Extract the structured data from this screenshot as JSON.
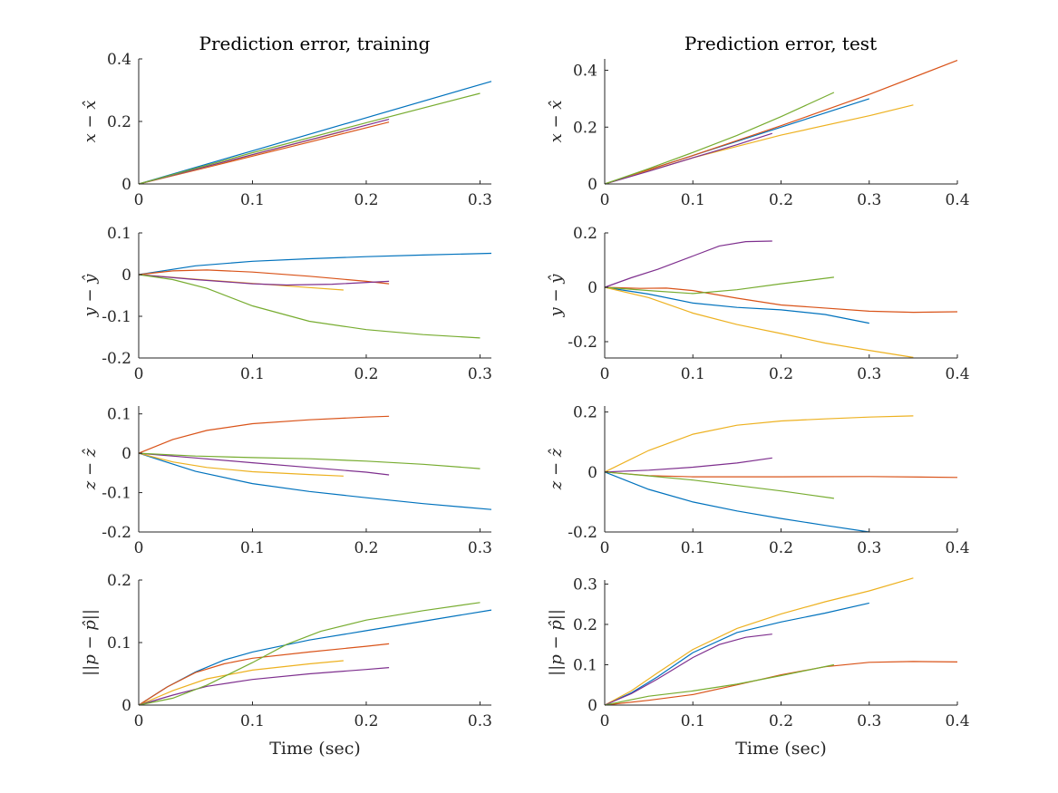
{
  "figure": {
    "columns": [
      {
        "title": "Prediction error, training"
      },
      {
        "title": "Prediction error, test"
      }
    ],
    "xlabel": "Time (sec)"
  },
  "colors": [
    "#0072bd",
    "#d95319",
    "#edb120",
    "#7e2f8e",
    "#77ac30"
  ],
  "chart_data": [
    {
      "type": "line",
      "panel": "training-x",
      "title": "Prediction error, training",
      "ylabel": "x − x̂",
      "xlabel": "",
      "xlim": [
        0,
        0.31
      ],
      "ylim": [
        0,
        0.4
      ],
      "xticks": [
        0,
        0.1,
        0.2,
        0.3
      ],
      "yticks": [
        0,
        0.2,
        0.4
      ],
      "series": [
        {
          "x": [
            0,
            0.1,
            0.2,
            0.31
          ],
          "y": [
            0,
            0.106,
            0.212,
            0.328
          ]
        },
        {
          "x": [
            0,
            0.05,
            0.1,
            0.15,
            0.22
          ],
          "y": [
            0,
            0.044,
            0.089,
            0.134,
            0.198
          ]
        },
        {
          "x": [
            0,
            0.05,
            0.1,
            0.15,
            0.18
          ],
          "y": [
            0,
            0.046,
            0.093,
            0.14,
            0.168
          ]
        },
        {
          "x": [
            0,
            0.05,
            0.1,
            0.15,
            0.22
          ],
          "y": [
            0,
            0.047,
            0.094,
            0.141,
            0.207
          ]
        },
        {
          "x": [
            0,
            0.1,
            0.2,
            0.3
          ],
          "y": [
            0,
            0.1,
            0.196,
            0.29
          ]
        }
      ]
    },
    {
      "type": "line",
      "panel": "test-x",
      "title": "Prediction error, test",
      "ylabel": "x − x̂",
      "xlabel": "",
      "xlim": [
        0,
        0.4
      ],
      "ylim": [
        0,
        0.44
      ],
      "xticks": [
        0,
        0.1,
        0.2,
        0.3,
        0.4
      ],
      "yticks": [
        0,
        0.2,
        0.4
      ],
      "series": [
        {
          "x": [
            0,
            0.1,
            0.2,
            0.3
          ],
          "y": [
            0,
            0.1,
            0.2,
            0.3
          ]
        },
        {
          "x": [
            0,
            0.1,
            0.2,
            0.3,
            0.4
          ],
          "y": [
            0,
            0.1,
            0.205,
            0.315,
            0.435
          ]
        },
        {
          "x": [
            0,
            0.1,
            0.2,
            0.3,
            0.35
          ],
          "y": [
            0,
            0.092,
            0.172,
            0.24,
            0.278
          ]
        },
        {
          "x": [
            0,
            0.05,
            0.1,
            0.15,
            0.19
          ],
          "y": [
            0,
            0.045,
            0.092,
            0.138,
            0.178
          ]
        },
        {
          "x": [
            0,
            0.05,
            0.1,
            0.15,
            0.2,
            0.26
          ],
          "y": [
            0,
            0.054,
            0.111,
            0.171,
            0.237,
            0.322
          ]
        }
      ]
    },
    {
      "type": "line",
      "panel": "training-y",
      "ylabel": "y − ŷ",
      "xlabel": "",
      "xlim": [
        0,
        0.31
      ],
      "ylim": [
        -0.2,
        0.1
      ],
      "xticks": [
        0,
        0.1,
        0.2,
        0.3
      ],
      "yticks": [
        -0.2,
        -0.1,
        0,
        0.1
      ],
      "series": [
        {
          "x": [
            0,
            0.05,
            0.1,
            0.15,
            0.2,
            0.25,
            0.31
          ],
          "y": [
            0,
            0.021,
            0.032,
            0.038,
            0.043,
            0.047,
            0.051
          ]
        },
        {
          "x": [
            0,
            0.03,
            0.06,
            0.1,
            0.15,
            0.2,
            0.22
          ],
          "y": [
            0,
            0.009,
            0.011,
            0.006,
            -0.004,
            -0.016,
            -0.022
          ]
        },
        {
          "x": [
            0,
            0.05,
            0.1,
            0.15,
            0.18
          ],
          "y": [
            0,
            -0.011,
            -0.021,
            -0.031,
            -0.037
          ]
        },
        {
          "x": [
            0,
            0.05,
            0.1,
            0.13,
            0.17,
            0.22
          ],
          "y": [
            0,
            -0.012,
            -0.022,
            -0.025,
            -0.023,
            -0.016
          ]
        },
        {
          "x": [
            0,
            0.03,
            0.06,
            0.1,
            0.15,
            0.2,
            0.25,
            0.3
          ],
          "y": [
            0,
            -0.012,
            -0.033,
            -0.075,
            -0.112,
            -0.132,
            -0.144,
            -0.152
          ]
        }
      ]
    },
    {
      "type": "line",
      "panel": "test-y",
      "ylabel": "y − ŷ",
      "xlabel": "",
      "xlim": [
        0,
        0.4
      ],
      "ylim": [
        -0.26,
        0.2
      ],
      "xticks": [
        0,
        0.1,
        0.2,
        0.3,
        0.4
      ],
      "yticks": [
        -0.2,
        0,
        0.2
      ],
      "series": [
        {
          "x": [
            0,
            0.05,
            0.1,
            0.15,
            0.2,
            0.25,
            0.3
          ],
          "y": [
            0,
            -0.025,
            -0.058,
            -0.074,
            -0.083,
            -0.1,
            -0.132
          ]
        },
        {
          "x": [
            0,
            0.04,
            0.07,
            0.1,
            0.15,
            0.2,
            0.3,
            0.35,
            0.4
          ],
          "y": [
            0,
            -0.004,
            -0.003,
            -0.012,
            -0.04,
            -0.065,
            -0.088,
            -0.092,
            -0.09
          ]
        },
        {
          "x": [
            0,
            0.05,
            0.1,
            0.15,
            0.2,
            0.25,
            0.3,
            0.35
          ],
          "y": [
            0,
            -0.038,
            -0.095,
            -0.137,
            -0.17,
            -0.205,
            -0.232,
            -0.258
          ]
        },
        {
          "x": [
            0,
            0.03,
            0.06,
            0.1,
            0.13,
            0.16,
            0.19
          ],
          "y": [
            0,
            0.035,
            0.066,
            0.115,
            0.152,
            0.168,
            0.17
          ]
        },
        {
          "x": [
            0,
            0.05,
            0.1,
            0.15,
            0.2,
            0.26
          ],
          "y": [
            0,
            -0.012,
            -0.023,
            -0.009,
            0.013,
            0.037
          ]
        }
      ]
    },
    {
      "type": "line",
      "panel": "training-z",
      "ylabel": "z − ẑ",
      "xlabel": "",
      "xlim": [
        0,
        0.31
      ],
      "ylim": [
        -0.2,
        0.12
      ],
      "xticks": [
        0,
        0.1,
        0.2,
        0.3
      ],
      "yticks": [
        -0.2,
        -0.1,
        0,
        0.1
      ],
      "series": [
        {
          "x": [
            0,
            0.05,
            0.1,
            0.15,
            0.2,
            0.25,
            0.31
          ],
          "y": [
            0,
            -0.046,
            -0.077,
            -0.097,
            -0.113,
            -0.128,
            -0.143
          ]
        },
        {
          "x": [
            0,
            0.03,
            0.06,
            0.1,
            0.15,
            0.2,
            0.22
          ],
          "y": [
            0,
            0.035,
            0.058,
            0.075,
            0.085,
            0.092,
            0.094
          ]
        },
        {
          "x": [
            0,
            0.03,
            0.06,
            0.1,
            0.15,
            0.18
          ],
          "y": [
            0,
            -0.022,
            -0.036,
            -0.047,
            -0.054,
            -0.058
          ]
        },
        {
          "x": [
            0,
            0.05,
            0.1,
            0.15,
            0.2,
            0.22
          ],
          "y": [
            0,
            -0.012,
            -0.024,
            -0.036,
            -0.048,
            -0.055
          ]
        },
        {
          "x": [
            0,
            0.05,
            0.1,
            0.15,
            0.2,
            0.25,
            0.3
          ],
          "y": [
            0,
            -0.007,
            -0.011,
            -0.014,
            -0.02,
            -0.028,
            -0.039
          ]
        }
      ]
    },
    {
      "type": "line",
      "panel": "test-z",
      "ylabel": "z − ẑ",
      "xlabel": "",
      "xlim": [
        0,
        0.4
      ],
      "ylim": [
        -0.2,
        0.22
      ],
      "xticks": [
        0,
        0.1,
        0.2,
        0.3,
        0.4
      ],
      "yticks": [
        -0.2,
        0,
        0.2
      ],
      "series": [
        {
          "x": [
            0,
            0.05,
            0.1,
            0.15,
            0.2,
            0.25,
            0.3
          ],
          "y": [
            0,
            -0.058,
            -0.1,
            -0.13,
            -0.155,
            -0.178,
            -0.2
          ]
        },
        {
          "x": [
            0,
            0.05,
            0.1,
            0.2,
            0.3,
            0.4
          ],
          "y": [
            0,
            -0.012,
            -0.016,
            -0.016,
            -0.015,
            -0.018
          ]
        },
        {
          "x": [
            0,
            0.05,
            0.1,
            0.15,
            0.2,
            0.25,
            0.3,
            0.35
          ],
          "y": [
            0,
            0.072,
            0.126,
            0.156,
            0.17,
            0.177,
            0.183,
            0.187
          ]
        },
        {
          "x": [
            0,
            0.05,
            0.1,
            0.15,
            0.19
          ],
          "y": [
            0,
            0.006,
            0.016,
            0.03,
            0.047
          ]
        },
        {
          "x": [
            0,
            0.05,
            0.1,
            0.15,
            0.2,
            0.26
          ],
          "y": [
            0,
            -0.013,
            -0.027,
            -0.045,
            -0.063,
            -0.088
          ]
        }
      ]
    },
    {
      "type": "line",
      "panel": "training-norm",
      "ylabel": "||p − p̂||",
      "xlabel": "Time (sec)",
      "xlim": [
        0,
        0.31
      ],
      "ylim": [
        0,
        0.2
      ],
      "xticks": [
        0,
        0.1,
        0.2,
        0.3
      ],
      "yticks": [
        0,
        0.1,
        0.2
      ],
      "series": [
        {
          "x": [
            0,
            0.025,
            0.05,
            0.075,
            0.1,
            0.15,
            0.2,
            0.25,
            0.31
          ],
          "y": [
            0,
            0.029,
            0.053,
            0.072,
            0.085,
            0.104,
            0.119,
            0.134,
            0.152
          ]
        },
        {
          "x": [
            0,
            0.025,
            0.05,
            0.075,
            0.1,
            0.15,
            0.2,
            0.22
          ],
          "y": [
            0,
            0.029,
            0.052,
            0.066,
            0.075,
            0.085,
            0.094,
            0.098
          ]
        },
        {
          "x": [
            0,
            0.03,
            0.06,
            0.1,
            0.15,
            0.18
          ],
          "y": [
            0,
            0.023,
            0.042,
            0.056,
            0.066,
            0.071
          ]
        },
        {
          "x": [
            0,
            0.03,
            0.06,
            0.1,
            0.15,
            0.2,
            0.22
          ],
          "y": [
            0,
            0.016,
            0.03,
            0.041,
            0.05,
            0.057,
            0.06
          ]
        },
        {
          "x": [
            0,
            0.03,
            0.06,
            0.1,
            0.13,
            0.16,
            0.2,
            0.25,
            0.3
          ],
          "y": [
            0,
            0.011,
            0.032,
            0.068,
            0.097,
            0.118,
            0.136,
            0.151,
            0.164
          ]
        }
      ]
    },
    {
      "type": "line",
      "panel": "test-norm",
      "ylabel": "||p − p̂||",
      "xlabel": "Time (sec)",
      "xlim": [
        0,
        0.4
      ],
      "ylim": [
        0,
        0.31
      ],
      "xticks": [
        0,
        0.1,
        0.2,
        0.3,
        0.4
      ],
      "yticks": [
        0,
        0.1,
        0.2,
        0.3
      ],
      "series": [
        {
          "x": [
            0,
            0.03,
            0.06,
            0.1,
            0.15,
            0.2,
            0.25,
            0.3
          ],
          "y": [
            0,
            0.03,
            0.07,
            0.13,
            0.18,
            0.206,
            0.228,
            0.253
          ]
        },
        {
          "x": [
            0,
            0.05,
            0.1,
            0.15,
            0.2,
            0.25,
            0.3,
            0.35,
            0.4
          ],
          "y": [
            0,
            0.012,
            0.026,
            0.05,
            0.075,
            0.095,
            0.106,
            0.108,
            0.107
          ]
        },
        {
          "x": [
            0,
            0.03,
            0.06,
            0.1,
            0.15,
            0.2,
            0.25,
            0.3,
            0.35
          ],
          "y": [
            0,
            0.035,
            0.08,
            0.138,
            0.19,
            0.226,
            0.256,
            0.283,
            0.315
          ]
        },
        {
          "x": [
            0,
            0.03,
            0.06,
            0.1,
            0.13,
            0.16,
            0.19
          ],
          "y": [
            0,
            0.028,
            0.065,
            0.118,
            0.15,
            0.168,
            0.176
          ]
        },
        {
          "x": [
            0,
            0.05,
            0.1,
            0.15,
            0.2,
            0.26
          ],
          "y": [
            0,
            0.022,
            0.035,
            0.052,
            0.073,
            0.1
          ]
        }
      ]
    }
  ]
}
